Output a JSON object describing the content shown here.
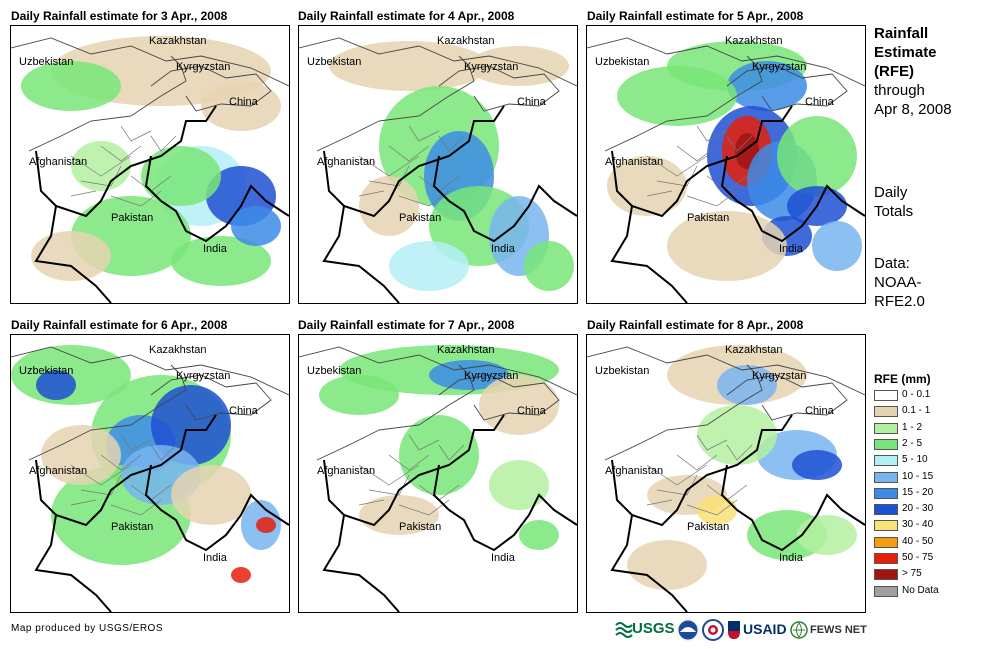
{
  "panels": [
    {
      "title": "Daily Rainfall estimate for 3 Apr., 2008",
      "variant": 0
    },
    {
      "title": "Daily Rainfall estimate for 4 Apr., 2008",
      "variant": 1
    },
    {
      "title": "Daily Rainfall estimate for 5 Apr., 2008",
      "variant": 2
    },
    {
      "title": "Daily Rainfall estimate for 6 Apr., 2008",
      "variant": 3
    },
    {
      "title": "Daily Rainfall estimate for 7 Apr., 2008",
      "variant": 4
    },
    {
      "title": "Daily Rainfall estimate for 8 Apr., 2008",
      "variant": 5
    }
  ],
  "map_labels": {
    "kazakhstan": "Kazakhstan",
    "uzbekistan": "Uzbekistan",
    "kyrgyzstan": "Kyrgyzstan",
    "china": "China",
    "afghanistan": "Afghanistan",
    "pakistan": "Pakistan",
    "india": "India"
  },
  "sidebar": {
    "heading_line1": "Rainfall",
    "heading_line2": "Estimate",
    "heading_line3": "(RFE)",
    "through_line1": "through",
    "through_line2": "Apr 8, 2008",
    "daily_line1": "Daily",
    "daily_line2": "Totals",
    "data_line1": "Data:",
    "data_line2": "NOAA-",
    "data_line3": "RFE2.0"
  },
  "legend": {
    "title": "RFE (mm)",
    "items": [
      {
        "label": "0 - 0.1",
        "color": "#ffffff"
      },
      {
        "label": "0.1 - 1",
        "color": "#e6d3b1"
      },
      {
        "label": "1 - 2",
        "color": "#b4f0a0"
      },
      {
        "label": "2 - 5",
        "color": "#78e678"
      },
      {
        "label": "5 - 10",
        "color": "#b4eef5"
      },
      {
        "label": "10 - 15",
        "color": "#78b4f0"
      },
      {
        "label": "15 - 20",
        "color": "#3c8ce6"
      },
      {
        "label": "20 - 30",
        "color": "#1e50d2"
      },
      {
        "label": "30 - 40",
        "color": "#fae178"
      },
      {
        "label": "40 - 50",
        "color": "#f59b14"
      },
      {
        "label": "50 - 75",
        "color": "#e61e0a"
      },
      {
        "label": "> 75",
        "color": "#a01414"
      },
      {
        "label": "No Data",
        "color": "#a0a0a0"
      }
    ]
  },
  "credit": "Map produced by USGS/EROS",
  "logos": {
    "usgs": "USGS",
    "usaid": "USAID",
    "fewsnet": "FEWS NET"
  }
}
